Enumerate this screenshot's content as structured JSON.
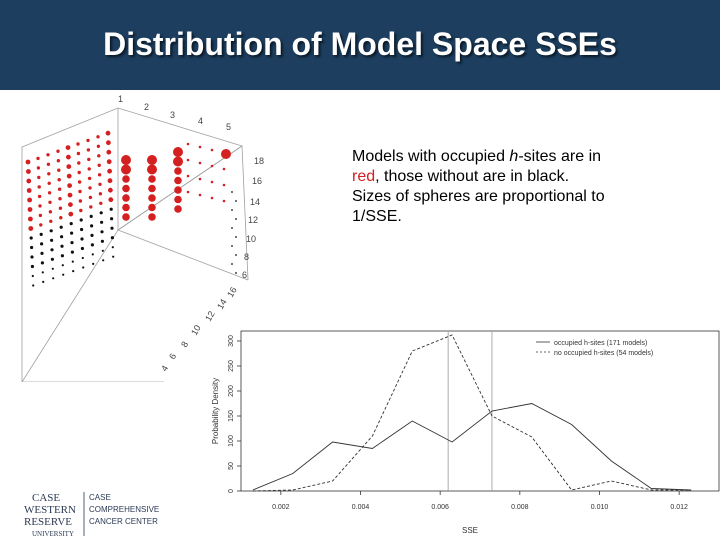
{
  "slide": {
    "title": "Distribution of Model Space SSEs",
    "description": {
      "part1": "Models with occupied ",
      "italic": "h",
      "part2": "-sites are in ",
      "red_word": "red",
      "part3": ", those without are in black. Sizes of spheres are proportional to 1/SSE."
    }
  },
  "colors": {
    "header": "#1d3e5e",
    "occupied": "#d42020",
    "unoccupied": "#111111"
  },
  "plot3d": {
    "top_ticks": [
      "1",
      "2",
      "3",
      "4",
      "5"
    ],
    "right_ticks": [
      "18",
      "16",
      "14",
      "12",
      "10",
      "8",
      "6"
    ],
    "depth_ticks": [
      "16",
      "14",
      "12",
      "10",
      "8",
      "6",
      "4"
    ]
  },
  "chart_data": {
    "type": "line",
    "xlabel": "SSE",
    "ylabel": "Probability Density",
    "xlim": [
      0.001,
      0.013
    ],
    "ylim": [
      0,
      320
    ],
    "x_ticks": [
      "0.002",
      "0.004",
      "0.006",
      "0.008",
      "0.010",
      "0.012"
    ],
    "y_ticks": [
      "0",
      "50",
      "100",
      "150",
      "200",
      "250",
      "300"
    ],
    "legend_position": "top-right",
    "vlines": [
      0.0062,
      0.0073
    ],
    "series": [
      {
        "name": "occupied h-sites (171 models)",
        "style": "solid",
        "x": [
          0.0013,
          0.0023,
          0.0033,
          0.0043,
          0.0053,
          0.0063,
          0.0073,
          0.0083,
          0.0093,
          0.0103,
          0.0113,
          0.0123
        ],
        "y": [
          2,
          35,
          98,
          85,
          140,
          98,
          160,
          175,
          133,
          60,
          5,
          2
        ]
      },
      {
        "name": "no occupied h-sites (54 models)",
        "style": "dashed",
        "x": [
          0.0013,
          0.0023,
          0.0033,
          0.0043,
          0.0053,
          0.0063,
          0.0073,
          0.0083,
          0.0093,
          0.0103,
          0.0113,
          0.0123
        ],
        "y": [
          0,
          2,
          20,
          110,
          280,
          312,
          150,
          108,
          2,
          20,
          2,
          2
        ]
      }
    ]
  },
  "logo": {
    "line1": "CASE",
    "line2": "WESTERN",
    "line3": "RESERVE",
    "line4": "UNIVERSITY",
    "right1": "CASE",
    "right2": "COMPREHENSIVE",
    "right3": "CANCER CENTER"
  }
}
